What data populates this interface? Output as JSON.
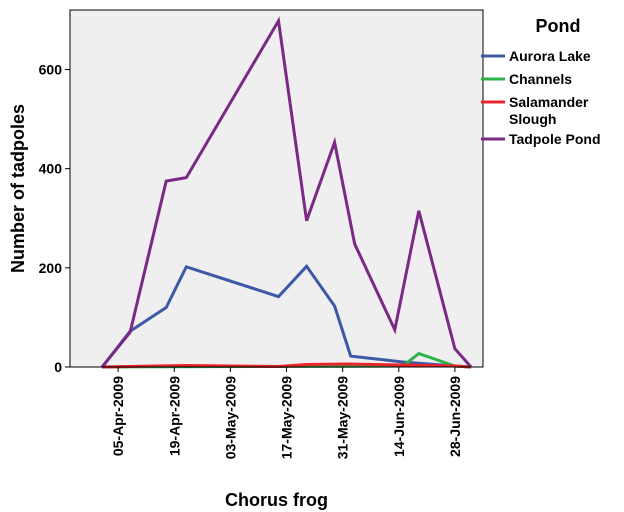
{
  "chart_data": {
    "type": "line",
    "xlabel": "Chorus frog",
    "ylabel": "Number of tadpoles",
    "ylim": [
      0,
      720
    ],
    "xlim": [
      "2009-03-24",
      "2009-07-05"
    ],
    "x_ticks": [
      "05-Apr-2009",
      "19-Apr-2009",
      "03-May-2009",
      "17-May-2009",
      "31-May-2009",
      "14-Jun-2009",
      "28-Jun-2009"
    ],
    "y_ticks": [
      "0",
      "200",
      "400",
      "600"
    ],
    "grid": false,
    "background": "#efefef",
    "legend": {
      "title": "Pond",
      "position": "right"
    },
    "series": [
      {
        "name": "Aurora Lake",
        "color": "#3e58a8",
        "points": [
          [
            "2009-04-01",
            0
          ],
          [
            "2009-04-08",
            72
          ],
          [
            "2009-04-17",
            120
          ],
          [
            "2009-04-22",
            202
          ],
          [
            "2009-05-15",
            142
          ],
          [
            "2009-05-22",
            203
          ],
          [
            "2009-05-29",
            123
          ],
          [
            "2009-06-02",
            22
          ],
          [
            "2009-06-15",
            10
          ],
          [
            "2009-06-28",
            2
          ],
          [
            "2009-07-02",
            0
          ]
        ]
      },
      {
        "name": "Channels",
        "color": "#2eb34a",
        "points": [
          [
            "2009-04-01",
            0
          ],
          [
            "2009-06-15",
            2
          ],
          [
            "2009-06-19",
            27
          ],
          [
            "2009-06-28",
            2
          ],
          [
            "2009-07-02",
            0
          ]
        ]
      },
      {
        "name": "Salamander Slough",
        "color": "#e8252b",
        "points": [
          [
            "2009-04-01",
            0
          ],
          [
            "2009-04-22",
            3
          ],
          [
            "2009-05-15",
            1
          ],
          [
            "2009-05-22",
            5
          ],
          [
            "2009-06-01",
            6
          ],
          [
            "2009-06-15",
            4
          ],
          [
            "2009-06-28",
            2
          ],
          [
            "2009-07-02",
            0
          ]
        ]
      },
      {
        "name": "Tadpole Pond",
        "color": "#7a2a84",
        "points": [
          [
            "2009-04-01",
            0
          ],
          [
            "2009-04-08",
            70
          ],
          [
            "2009-04-17",
            375
          ],
          [
            "2009-04-22",
            382
          ],
          [
            "2009-05-15",
            698
          ],
          [
            "2009-05-22",
            295
          ],
          [
            "2009-05-29",
            453
          ],
          [
            "2009-06-03",
            248
          ],
          [
            "2009-06-13",
            75
          ],
          [
            "2009-06-19",
            315
          ],
          [
            "2009-06-28",
            37
          ],
          [
            "2009-07-02",
            0
          ]
        ]
      }
    ]
  }
}
